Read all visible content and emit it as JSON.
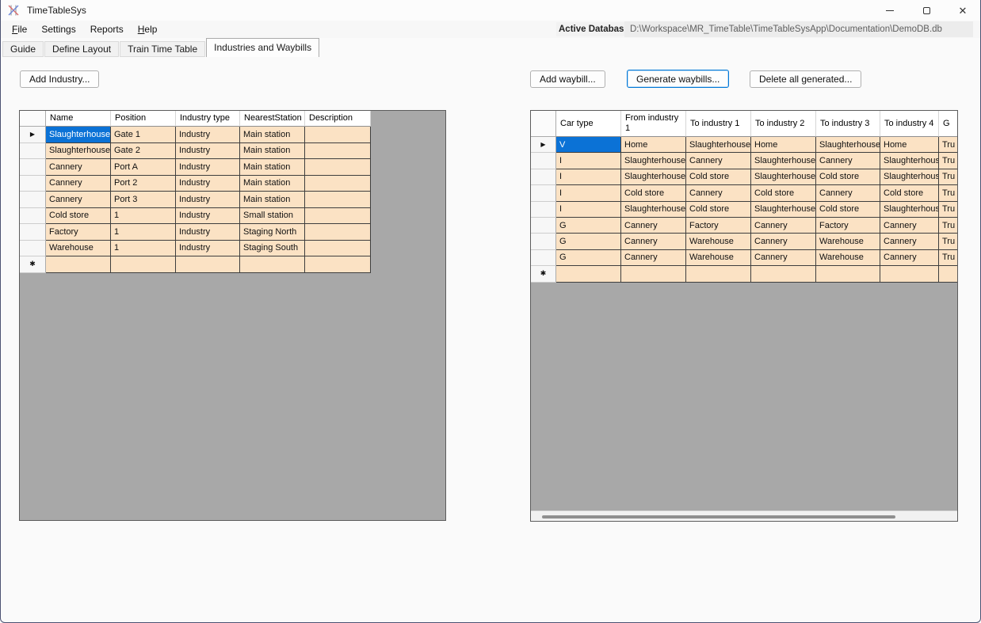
{
  "window": {
    "title": "TimeTableSys"
  },
  "menu": {
    "items": [
      {
        "label": "File",
        "underline_first": true
      },
      {
        "label": "Settings",
        "underline_first": false
      },
      {
        "label": "Reports",
        "underline_first": false
      },
      {
        "label": "Help",
        "underline_first": true
      }
    ],
    "active_db_label": "Active Database:",
    "active_db_path": "D:\\Workspace\\MR_TimeTable\\TimeTableSysApp\\Documentation\\DemoDB.db"
  },
  "tabs": {
    "items": [
      "Guide",
      "Define Layout",
      "Train Time Table",
      "Industries and Waybills"
    ],
    "active_index": 3
  },
  "industries_panel": {
    "add_button": "Add Industry...",
    "grid": {
      "columns": [
        "Name",
        "Position",
        "Industry type",
        "NearestStation",
        "Description"
      ],
      "rows": [
        [
          "Slaughterhouse",
          "Gate 1",
          "Industry",
          "Main station",
          ""
        ],
        [
          "Slaughterhouse",
          "Gate 2",
          "Industry",
          "Main station",
          ""
        ],
        [
          "Cannery",
          "Port A",
          "Industry",
          "Main station",
          ""
        ],
        [
          "Cannery",
          "Port 2",
          "Industry",
          "Main station",
          ""
        ],
        [
          "Cannery",
          "Port 3",
          "Industry",
          "Main station",
          ""
        ],
        [
          "Cold store",
          "1",
          "Industry",
          "Small station",
          ""
        ],
        [
          "Factory",
          "1",
          "Industry",
          "Staging North",
          ""
        ],
        [
          "Warehouse",
          "1",
          "Industry",
          "Staging South",
          ""
        ]
      ],
      "has_new_row": true,
      "selected_cell": {
        "row": 0,
        "col": 0
      },
      "row_indicator": "arrow",
      "new_row_glyph": "asterisk"
    }
  },
  "waybills_panel": {
    "buttons": [
      "Add waybill...",
      "Generate waybills...",
      "Delete all generated..."
    ],
    "grid": {
      "columns": [
        "Car type",
        "From industry 1",
        "To industry 1",
        "To industry 2",
        "To industry 3",
        "To industry 4",
        "G"
      ],
      "rows": [
        [
          "V",
          "Home",
          "Slaughterhouse",
          "Home",
          "Slaughterhouse",
          "Home",
          "Tru"
        ],
        [
          "I",
          "Slaughterhouse",
          "Cannery",
          "Slaughterhouse",
          "Cannery",
          "Slaughterhouse",
          "Tru"
        ],
        [
          "I",
          "Slaughterhouse",
          "Cold store",
          "Slaughterhouse",
          "Cold store",
          "Slaughterhouse",
          "Tru"
        ],
        [
          "I",
          "Cold store",
          "Cannery",
          "Cold store",
          "Cannery",
          "Cold store",
          "Tru"
        ],
        [
          "I",
          "Slaughterhouse",
          "Cold store",
          "Slaughterhouse",
          "Cold store",
          "Slaughterhouse",
          "Tru"
        ],
        [
          "G",
          "Cannery",
          "Factory",
          "Cannery",
          "Factory",
          "Cannery",
          "Tru"
        ],
        [
          "G",
          "Cannery",
          "Warehouse",
          "Cannery",
          "Warehouse",
          "Cannery",
          "Tru"
        ],
        [
          "G",
          "Cannery",
          "Warehouse",
          "Cannery",
          "Warehouse",
          "Cannery",
          "Tru"
        ]
      ],
      "has_new_row": true,
      "selected_cell": {
        "row": 0,
        "col": 0
      },
      "row_indicator": "arrow",
      "new_row_glyph": "asterisk"
    }
  },
  "colors": {
    "cell_background": "#FBE2C4",
    "selection": "#0B72D6",
    "grid_area": "#A8A8A8",
    "focus_border": "#0078D7"
  }
}
